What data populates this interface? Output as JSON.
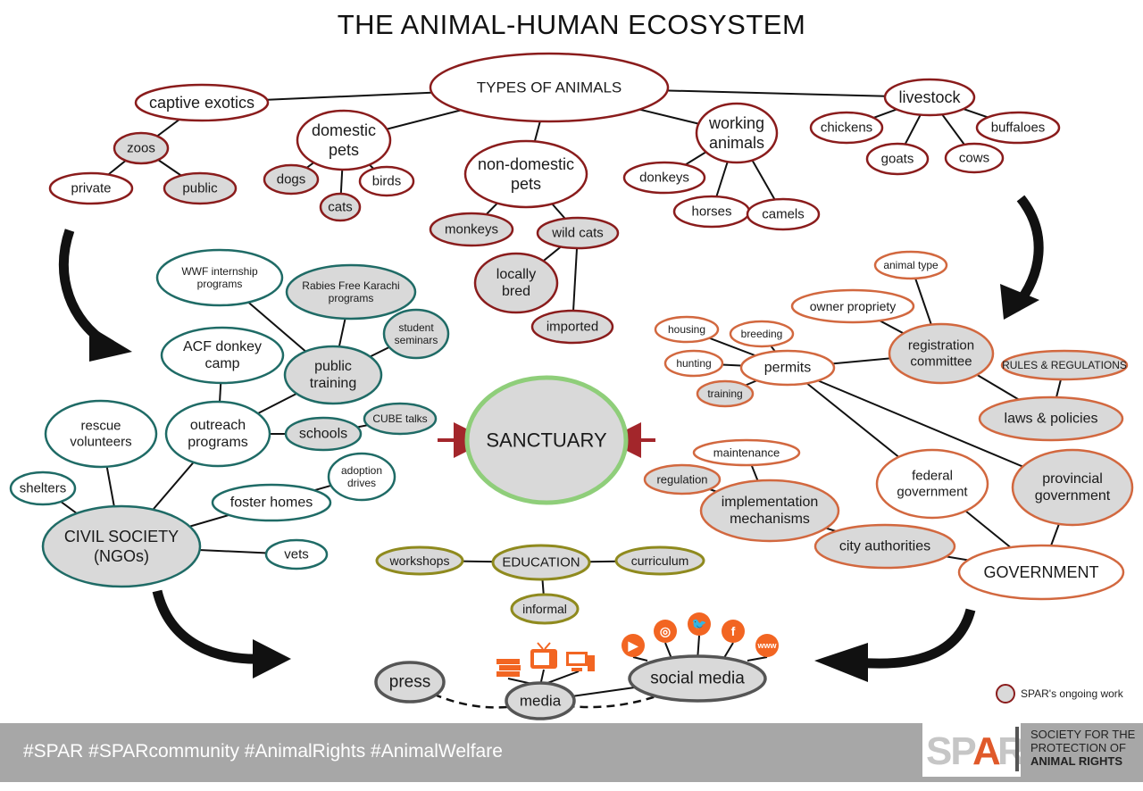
{
  "title": "THE ANIMAL-HUMAN ECOSYSTEM",
  "colors": {
    "animals_border": "#8a1c1c",
    "ngo_border": "#1f6b66",
    "gov_border": "#d2683f",
    "edu_border": "#8f8a1e",
    "media_border": "#555555",
    "sanctuary_border": "#8fce7a",
    "spar_fill": "#d9d9d9",
    "arrow_red": "#a3262b",
    "icon_orange": "#f26522"
  },
  "nodes": [
    {
      "id": "types",
      "text": [
        "TYPES OF ANIMALS"
      ],
      "g": "animals",
      "spar": false
    },
    {
      "id": "captive",
      "text": [
        "captive exotics"
      ],
      "g": "animals",
      "spar": false
    },
    {
      "id": "zoos",
      "text": [
        "zoos"
      ],
      "g": "animals",
      "spar": true
    },
    {
      "id": "private",
      "text": [
        "private"
      ],
      "g": "animals",
      "spar": false
    },
    {
      "id": "public",
      "text": [
        "public"
      ],
      "g": "animals",
      "spar": true
    },
    {
      "id": "domestic",
      "text": [
        "domestic",
        "pets"
      ],
      "g": "animals",
      "spar": false
    },
    {
      "id": "dogs",
      "text": [
        "dogs"
      ],
      "g": "animals",
      "spar": true
    },
    {
      "id": "cats",
      "text": [
        "cats"
      ],
      "g": "animals",
      "spar": true
    },
    {
      "id": "birds",
      "text": [
        "birds"
      ],
      "g": "animals",
      "spar": false
    },
    {
      "id": "nondomestic",
      "text": [
        "non-domestic",
        "pets"
      ],
      "g": "animals",
      "spar": false
    },
    {
      "id": "monkeys",
      "text": [
        "monkeys"
      ],
      "g": "animals",
      "spar": true
    },
    {
      "id": "wildcats",
      "text": [
        "wild cats"
      ],
      "g": "animals",
      "spar": true
    },
    {
      "id": "locallybred",
      "text": [
        "locally",
        "bred"
      ],
      "g": "animals",
      "spar": true
    },
    {
      "id": "imported",
      "text": [
        "imported"
      ],
      "g": "animals",
      "spar": true
    },
    {
      "id": "working",
      "text": [
        "working",
        "animals"
      ],
      "g": "animals",
      "spar": false
    },
    {
      "id": "donkeys",
      "text": [
        "donkeys"
      ],
      "g": "animals",
      "spar": false
    },
    {
      "id": "horses",
      "text": [
        "horses"
      ],
      "g": "animals",
      "spar": false
    },
    {
      "id": "camels",
      "text": [
        "camels"
      ],
      "g": "animals",
      "spar": false
    },
    {
      "id": "livestock",
      "text": [
        "livestock"
      ],
      "g": "animals",
      "spar": false
    },
    {
      "id": "chickens",
      "text": [
        "chickens"
      ],
      "g": "animals",
      "spar": false
    },
    {
      "id": "goats",
      "text": [
        "goats"
      ],
      "g": "animals",
      "spar": false
    },
    {
      "id": "cows",
      "text": [
        "cows"
      ],
      "g": "animals",
      "spar": false
    },
    {
      "id": "buffaloes",
      "text": [
        "buffaloes"
      ],
      "g": "animals",
      "spar": false
    },
    {
      "id": "wwf",
      "text": [
        "WWF internship",
        "programs"
      ],
      "g": "ngo",
      "spar": false
    },
    {
      "id": "rabies",
      "text": [
        "Rabies Free Karachi",
        "programs"
      ],
      "g": "ngo",
      "spar": true
    },
    {
      "id": "student",
      "text": [
        "student",
        "seminars"
      ],
      "g": "ngo",
      "spar": true
    },
    {
      "id": "acf",
      "text": [
        "ACF donkey",
        "camp"
      ],
      "g": "ngo",
      "spar": false
    },
    {
      "id": "publictraining",
      "text": [
        "public",
        "training"
      ],
      "g": "ngo",
      "spar": true
    },
    {
      "id": "rescue",
      "text": [
        "rescue",
        "volunteers"
      ],
      "g": "ngo",
      "spar": false
    },
    {
      "id": "outreach",
      "text": [
        "outreach",
        "programs"
      ],
      "g": "ngo",
      "spar": false
    },
    {
      "id": "schools",
      "text": [
        "schools"
      ],
      "g": "ngo",
      "spar": true
    },
    {
      "id": "cube",
      "text": [
        "CUBE talks"
      ],
      "g": "ngo",
      "spar": true
    },
    {
      "id": "shelters",
      "text": [
        "shelters"
      ],
      "g": "ngo",
      "spar": false
    },
    {
      "id": "adoption",
      "text": [
        "adoption",
        "drives"
      ],
      "g": "ngo",
      "spar": false
    },
    {
      "id": "foster",
      "text": [
        "foster homes"
      ],
      "g": "ngo",
      "spar": false
    },
    {
      "id": "civil",
      "text": [
        "CIVIL SOCIETY",
        "(NGOs)"
      ],
      "g": "ngo",
      "spar": true
    },
    {
      "id": "vets",
      "text": [
        "vets"
      ],
      "g": "ngo",
      "spar": false
    },
    {
      "id": "sanctuary",
      "text": [
        "SANCTUARY"
      ],
      "g": "sanctuary",
      "spar": true
    },
    {
      "id": "animaltype",
      "text": [
        "animal type"
      ],
      "g": "gov",
      "spar": false
    },
    {
      "id": "owner",
      "text": [
        "owner propriety"
      ],
      "g": "gov",
      "spar": false
    },
    {
      "id": "registration",
      "text": [
        "registration",
        "committee"
      ],
      "g": "gov",
      "spar": true
    },
    {
      "id": "rules",
      "text": [
        "RULES & REGULATIONS"
      ],
      "g": "gov",
      "spar": true
    },
    {
      "id": "laws",
      "text": [
        "laws & policies"
      ],
      "g": "gov",
      "spar": true
    },
    {
      "id": "housing",
      "text": [
        "housing"
      ],
      "g": "gov",
      "spar": false
    },
    {
      "id": "breeding",
      "text": [
        "breeding"
      ],
      "g": "gov",
      "spar": false
    },
    {
      "id": "hunting",
      "text": [
        "hunting"
      ],
      "g": "gov",
      "spar": false
    },
    {
      "id": "permits",
      "text": [
        "permits"
      ],
      "g": "gov",
      "spar": false
    },
    {
      "id": "training",
      "text": [
        "training"
      ],
      "g": "gov",
      "spar": true
    },
    {
      "id": "maintenance",
      "text": [
        "maintenance"
      ],
      "g": "gov",
      "spar": false
    },
    {
      "id": "regulation",
      "text": [
        "regulation"
      ],
      "g": "gov",
      "spar": true
    },
    {
      "id": "implementation",
      "text": [
        "implementation",
        "mechanisms"
      ],
      "g": "gov",
      "spar": true
    },
    {
      "id": "federal",
      "text": [
        "federal",
        "government"
      ],
      "g": "gov",
      "spar": false
    },
    {
      "id": "provincial",
      "text": [
        "provincial",
        "government"
      ],
      "g": "gov",
      "spar": true
    },
    {
      "id": "city",
      "text": [
        "city authorities"
      ],
      "g": "gov",
      "spar": true
    },
    {
      "id": "government",
      "text": [
        "GOVERNMENT"
      ],
      "g": "gov",
      "spar": false
    },
    {
      "id": "workshops",
      "text": [
        "workshops"
      ],
      "g": "edu",
      "spar": true
    },
    {
      "id": "education",
      "text": [
        "EDUCATION"
      ],
      "g": "edu",
      "spar": true
    },
    {
      "id": "curriculum",
      "text": [
        "curriculum"
      ],
      "g": "edu",
      "spar": true
    },
    {
      "id": "informal",
      "text": [
        "informal"
      ],
      "g": "edu",
      "spar": true
    },
    {
      "id": "press",
      "text": [
        "press"
      ],
      "g": "media",
      "spar": true
    },
    {
      "id": "media",
      "text": [
        "media"
      ],
      "g": "media",
      "spar": true
    },
    {
      "id": "social",
      "text": [
        "social media"
      ],
      "g": "media",
      "spar": true
    }
  ],
  "edges": [
    [
      "types",
      "captive"
    ],
    [
      "types",
      "domestic"
    ],
    [
      "types",
      "nondomestic"
    ],
    [
      "types",
      "working"
    ],
    [
      "types",
      "livestock"
    ],
    [
      "captive",
      "zoos"
    ],
    [
      "zoos",
      "private"
    ],
    [
      "zoos",
      "public"
    ],
    [
      "domestic",
      "dogs"
    ],
    [
      "domestic",
      "cats"
    ],
    [
      "domestic",
      "birds"
    ],
    [
      "nondomestic",
      "monkeys"
    ],
    [
      "nondomestic",
      "wildcats"
    ],
    [
      "wildcats",
      "locallybred"
    ],
    [
      "wildcats",
      "imported"
    ],
    [
      "working",
      "donkeys"
    ],
    [
      "working",
      "horses"
    ],
    [
      "working",
      "camels"
    ],
    [
      "livestock",
      "chickens"
    ],
    [
      "livestock",
      "goats"
    ],
    [
      "livestock",
      "cows"
    ],
    [
      "livestock",
      "buffaloes"
    ],
    [
      "wwf",
      "publictraining"
    ],
    [
      "rabies",
      "publictraining"
    ],
    [
      "student",
      "publictraining"
    ],
    [
      "acf",
      "outreach"
    ],
    [
      "publictraining",
      "outreach"
    ],
    [
      "outreach",
      "schools"
    ],
    [
      "schools",
      "cube"
    ],
    [
      "outreach",
      "civil"
    ],
    [
      "rescue",
      "civil"
    ],
    [
      "shelters",
      "civil"
    ],
    [
      "foster",
      "civil"
    ],
    [
      "foster",
      "adoption"
    ],
    [
      "civil",
      "vets"
    ],
    [
      "animaltype",
      "registration"
    ],
    [
      "owner",
      "registration"
    ],
    [
      "registration",
      "laws"
    ],
    [
      "rules",
      "laws"
    ],
    [
      "housing",
      "permits"
    ],
    [
      "breeding",
      "permits"
    ],
    [
      "hunting",
      "permits"
    ],
    [
      "training",
      "permits"
    ],
    [
      "permits",
      "registration"
    ],
    [
      "permits",
      "federal"
    ],
    [
      "permits",
      "provincial"
    ],
    [
      "maintenance",
      "implementation"
    ],
    [
      "regulation",
      "implementation"
    ],
    [
      "implementation",
      "city"
    ],
    [
      "federal",
      "government"
    ],
    [
      "provincial",
      "government"
    ],
    [
      "city",
      "government"
    ],
    [
      "workshops",
      "education"
    ],
    [
      "education",
      "curriculum"
    ],
    [
      "education",
      "informal"
    ],
    [
      "media",
      "social"
    ]
  ],
  "dashed_edges": [
    [
      "press",
      "media"
    ],
    [
      "media",
      "social"
    ]
  ],
  "media_icons": [
    "books-icon",
    "tv-icon",
    "computer-icon"
  ],
  "social_icons": [
    {
      "name": "youtube-icon",
      "glyph": "▶"
    },
    {
      "name": "instagram-icon",
      "glyph": "◎"
    },
    {
      "name": "twitter-icon",
      "glyph": "🐦"
    },
    {
      "name": "facebook-icon",
      "glyph": "f"
    },
    {
      "name": "www-icon",
      "glyph": "www"
    }
  ],
  "legend": {
    "label": "SPAR's ongoing work"
  },
  "footer": {
    "hashtags": "#SPAR #SPARcommunity #AnimalRights #AnimalWelfare",
    "logo_text": "SPAR",
    "org_line1": "SOCIETY FOR THE",
    "org_line2": "PROTECTION OF",
    "org_line3": "ANIMAL RIGHTS"
  }
}
